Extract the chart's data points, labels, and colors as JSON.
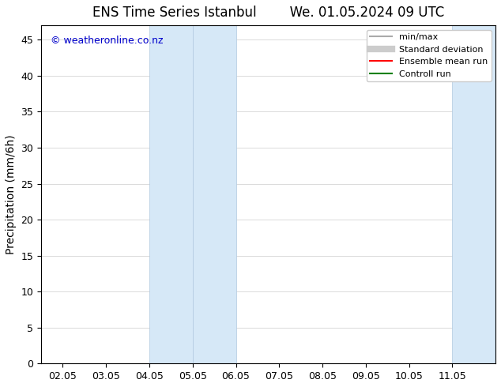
{
  "title": "ENS Time Series Istanbul        We. 01.05.2024 09 UTC",
  "ylabel": "Precipitation (mm/6h)",
  "xlabel": "",
  "background_color": "#ffffff",
  "plot_bg_color": "#ffffff",
  "ylim": [
    0,
    47
  ],
  "yticks": [
    0,
    5,
    10,
    15,
    20,
    25,
    30,
    35,
    40,
    45
  ],
  "xtick_labels": [
    "02.05",
    "03.05",
    "04.05",
    "05.05",
    "06.05",
    "07.05",
    "08.05",
    "09.05",
    "10.05",
    "11.05"
  ],
  "watermark": "© weatheronline.co.nz",
  "watermark_color": "#0000cc",
  "shade_regions": [
    {
      "x_start": 4.0,
      "x_end": 5.0,
      "color": "#d6e8f7"
    },
    {
      "x_start": 5.0,
      "x_end": 6.0,
      "color": "#d6e8f7"
    },
    {
      "x_start": 11.0,
      "x_end": 12.0,
      "color": "#d6e8f7"
    }
  ],
  "shade_border_color": "#b0c8e0",
  "legend_items": [
    {
      "label": "min/max",
      "color": "#aaaaaa",
      "linestyle": "-",
      "linewidth": 1.5
    },
    {
      "label": "Standard deviation",
      "color": "#cccccc",
      "linestyle": "-",
      "linewidth": 6
    },
    {
      "label": "Ensemble mean run",
      "color": "#ff0000",
      "linestyle": "-",
      "linewidth": 1.5
    },
    {
      "label": "Controll run",
      "color": "#008000",
      "linestyle": "-",
      "linewidth": 1.5
    }
  ],
  "x_range": [
    1.5,
    12.0
  ],
  "tick_positions": [
    2,
    3,
    4,
    5,
    6,
    7,
    8,
    9,
    10,
    11
  ],
  "title_fontsize": 12,
  "axis_fontsize": 10,
  "tick_fontsize": 9
}
